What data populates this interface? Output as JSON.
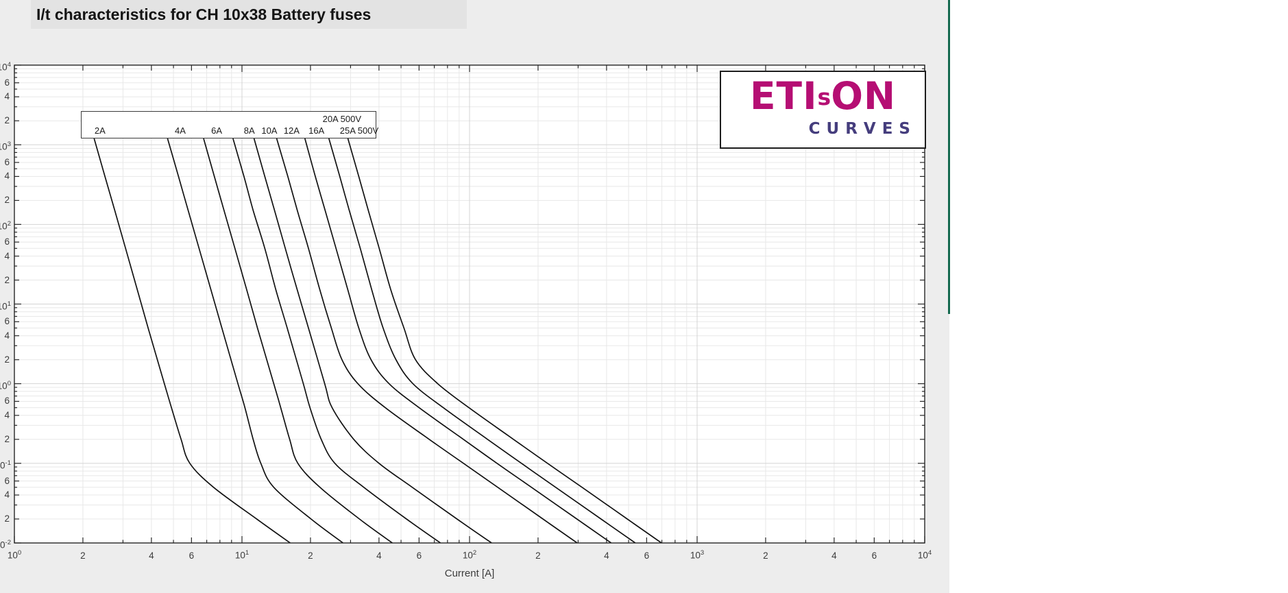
{
  "title": "I/t characteristics for CH 10x38 Battery fuses",
  "logo": {
    "text_eti": "ETI",
    "text_s": "s",
    "text_on": "ON",
    "tagline": "CURVES",
    "color_brand": "#b50e73",
    "color_tagline": "#453d7d"
  },
  "colors": {
    "figure_background": "#ededed",
    "plot_background": "#ffffff",
    "grid_minor": "#e8e8e8",
    "grid_major": "#d4d4d4",
    "axis": "#262626",
    "curve": "#121212",
    "title_strip": "#e3e3e3",
    "edge_line_green": "#156a50"
  },
  "chart_data": {
    "type": "line",
    "title": "I/t characteristics for CH 10x38 Battery fuses",
    "xlabel": "Current [A]",
    "ylabel": "",
    "x_scale": "log",
    "y_scale": "log",
    "xlim": [
      1,
      10000
    ],
    "ylim": [
      0.01,
      10000
    ],
    "grid": "on (log major + minor)",
    "legend_position": "framed box at top-left inside plot",
    "x_axis": {
      "decade_exponents": [
        0,
        1,
        2,
        3,
        4
      ],
      "labeled_minors": [
        2,
        4,
        6
      ]
    },
    "y_axis": {
      "decade_exponents": [
        4,
        3,
        2,
        1,
        0,
        -1,
        -2
      ],
      "labeled_minors": [
        6,
        4,
        2
      ]
    },
    "curve_labels": [
      {
        "text": "2A",
        "anchor_current": 2.36,
        "row": 2
      },
      {
        "text": "4A",
        "anchor_current": 5.32,
        "row": 2
      },
      {
        "text": "6A",
        "anchor_current": 7.69,
        "row": 2
      },
      {
        "text": "8A",
        "anchor_current": 10.7,
        "row": 2
      },
      {
        "text": "10A",
        "anchor_current": 13.1,
        "row": 2
      },
      {
        "text": "12A",
        "anchor_current": 16.4,
        "row": 2
      },
      {
        "text": "16A",
        "anchor_current": 21.1,
        "row": 2
      },
      {
        "text": "20A 500V",
        "anchor_current": 27.3,
        "row": 1
      },
      {
        "text": "25A 500V",
        "anchor_current": 32.5,
        "row": 2
      }
    ],
    "series": [
      {
        "name": "2A",
        "points": [
          [
            2.24,
            1200
          ],
          [
            2.5,
            400
          ],
          [
            2.76,
            150
          ],
          [
            3.08,
            50
          ],
          [
            3.47,
            15
          ],
          [
            3.87,
            5
          ],
          [
            4.56,
            1
          ],
          [
            4.9,
            0.5
          ],
          [
            5.4,
            0.2
          ],
          [
            5.9,
            0.1
          ],
          [
            7.5,
            0.05
          ],
          [
            11.6,
            0.02
          ],
          [
            16.3,
            0.01
          ]
        ]
      },
      {
        "name": "4A",
        "points": [
          [
            4.71,
            1200
          ],
          [
            5.26,
            400
          ],
          [
            5.8,
            150
          ],
          [
            6.48,
            50
          ],
          [
            7.31,
            15
          ],
          [
            8.16,
            5
          ],
          [
            9.6,
            1
          ],
          [
            10.3,
            0.5
          ],
          [
            11.2,
            0.2
          ],
          [
            12.1,
            0.1
          ],
          [
            13.8,
            0.05
          ],
          [
            20.1,
            0.02
          ],
          [
            27.8,
            0.01
          ]
        ]
      },
      {
        "name": "6A",
        "points": [
          [
            6.78,
            1200
          ],
          [
            7.56,
            400
          ],
          [
            8.34,
            150
          ],
          [
            9.31,
            50
          ],
          [
            10.5,
            15
          ],
          [
            11.7,
            5
          ],
          [
            13.8,
            1
          ],
          [
            14.8,
            0.5
          ],
          [
            16.2,
            0.2
          ],
          [
            17.6,
            0.1
          ],
          [
            22,
            0.05
          ],
          [
            32.8,
            0.02
          ],
          [
            45.8,
            0.01
          ]
        ]
      },
      {
        "name": "8A",
        "points": [
          [
            9.13,
            1200
          ],
          [
            10.2,
            400
          ],
          [
            11.2,
            150
          ],
          [
            12.6,
            50
          ],
          [
            14.1,
            15
          ],
          [
            15.8,
            5
          ],
          [
            18.6,
            1
          ],
          [
            19.9,
            0.5
          ],
          [
            22.3,
            0.2
          ],
          [
            25.6,
            0.1
          ],
          [
            34.3,
            0.05
          ],
          [
            52.8,
            0.02
          ],
          [
            74.5,
            0.01
          ]
        ]
      },
      {
        "name": "10A",
        "points": [
          [
            11.3,
            1200
          ],
          [
            12.6,
            400
          ],
          [
            13.9,
            150
          ],
          [
            15.5,
            50
          ],
          [
            17.5,
            15
          ],
          [
            19.6,
            5
          ],
          [
            23.1,
            1
          ],
          [
            24.9,
            0.5
          ],
          [
            31,
            0.2
          ],
          [
            40,
            0.1
          ],
          [
            56,
            0.05
          ],
          [
            88,
            0.02
          ],
          [
            125,
            0.01
          ]
        ]
      },
      {
        "name": "12A",
        "points": [
          [
            14.2,
            1200
          ],
          [
            15.9,
            400
          ],
          [
            17.5,
            150
          ],
          [
            19.6,
            50
          ],
          [
            22,
            15
          ],
          [
            24.7,
            5
          ],
          [
            27.5,
            2
          ],
          [
            32.3,
            1
          ],
          [
            42.6,
            0.5
          ],
          [
            66.5,
            0.2
          ],
          [
            94,
            0.1
          ],
          [
            133,
            0.05
          ],
          [
            210,
            0.02
          ],
          [
            297,
            0.01
          ]
        ]
      },
      {
        "name": "16A",
        "points": [
          [
            18.9,
            1200
          ],
          [
            21,
            400
          ],
          [
            23.2,
            150
          ],
          [
            25.9,
            50
          ],
          [
            29.2,
            15
          ],
          [
            32.6,
            5
          ],
          [
            36.9,
            2
          ],
          [
            44.3,
            1
          ],
          [
            60,
            0.5
          ],
          [
            94,
            0.2
          ],
          [
            132,
            0.1
          ],
          [
            187,
            0.05
          ],
          [
            296,
            0.02
          ],
          [
            419,
            0.01
          ]
        ]
      },
      {
        "name": "20A 500V",
        "points": [
          [
            24.1,
            1200
          ],
          [
            26.9,
            400
          ],
          [
            29.6,
            150
          ],
          [
            33.1,
            50
          ],
          [
            37.2,
            15
          ],
          [
            41.7,
            5
          ],
          [
            47.5,
            2
          ],
          [
            56.4,
            1
          ],
          [
            76.6,
            0.5
          ],
          [
            120,
            0.2
          ],
          [
            169,
            0.1
          ],
          [
            239,
            0.05
          ],
          [
            378,
            0.02
          ],
          [
            535,
            0.01
          ]
        ]
      },
      {
        "name": "25A 500V",
        "points": [
          [
            29.2,
            1200
          ],
          [
            32.6,
            400
          ],
          [
            35.9,
            150
          ],
          [
            40.1,
            50
          ],
          [
            45.1,
            15
          ],
          [
            51.5,
            5
          ],
          [
            57.9,
            2
          ],
          [
            72.5,
            1
          ],
          [
            99.3,
            0.5
          ],
          [
            156,
            0.2
          ],
          [
            220,
            0.1
          ],
          [
            312,
            0.05
          ],
          [
            493,
            0.02
          ],
          [
            697,
            0.01
          ]
        ]
      }
    ]
  }
}
